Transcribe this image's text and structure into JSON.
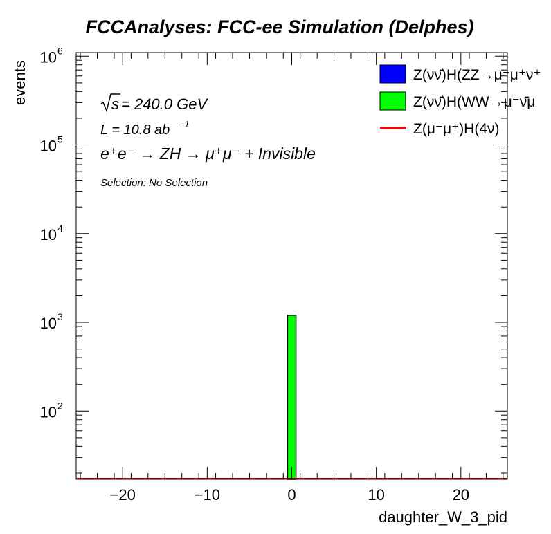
{
  "title": "FCCAnalyses: FCC-ee Simulation (Delphes)",
  "annotations": {
    "sqrt_s_symbol": "s",
    "energy": " = 240.0 GeV",
    "lumi_main": "L = 10.8 ab",
    "lumi_exp": "-1",
    "process_text": "e⁺e⁻ → ZH → μ⁺μ⁻ + Invisible",
    "selection": "Selection: No Selection"
  },
  "legend": [
    {
      "label": "Z(νν̄)H(ZZ→μ⁻μ⁺ν⁺",
      "color": "#0000ff",
      "style": "fill"
    },
    {
      "label": "Z(νν̄)H(WW→μ⁻ν̄μ",
      "color": "#00ff00",
      "style": "fill"
    },
    {
      "label": "Z(μ⁻μ⁺)H(4ν)",
      "color": "#ff0000",
      "style": "line"
    }
  ],
  "chart_data": {
    "type": "bar",
    "title": "FCCAnalyses: FCC-ee Simulation (Delphes)",
    "xlabel": "daughter_W_3_pid",
    "ylabel": "events",
    "xlim": [
      -25.5,
      25.5
    ],
    "ylim": [
      17,
      1100000
    ],
    "yscale": "log",
    "bin_width": 1,
    "x_ticks": [
      -20,
      -10,
      0,
      10,
      20
    ],
    "x_tick_labels": [
      "−20",
      "−10",
      "0",
      "10",
      "20"
    ],
    "y_ticks": [
      100,
      1000,
      10000,
      100000,
      1000000
    ],
    "y_tick_labels": [
      {
        "base": "10",
        "exp": "2"
      },
      {
        "base": "10",
        "exp": "3"
      },
      {
        "base": "10",
        "exp": "4"
      },
      {
        "base": "10",
        "exp": "5"
      },
      {
        "base": "10",
        "exp": "6"
      }
    ],
    "series": [
      {
        "name": "Z(νν̄)H(ZZ→μ⁻μ⁺ν⁺",
        "color": "#0000ff",
        "bins": []
      },
      {
        "name": "Z(νν̄)H(WW→μ⁻ν̄μ",
        "color": "#00ff00",
        "bins": [
          {
            "x": 0,
            "value": 1200
          }
        ]
      },
      {
        "name": "Z(μ⁻μ⁺)H(4ν)",
        "color": "#ff0000",
        "bins": []
      }
    ],
    "grid": false,
    "legend_position": "top-right"
  }
}
